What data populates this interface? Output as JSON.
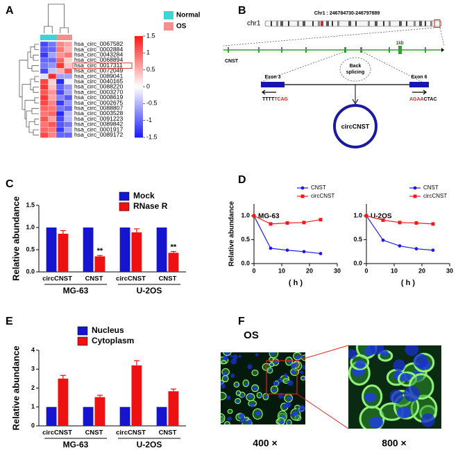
{
  "panel_labels": [
    "A",
    "B",
    "C",
    "D",
    "E",
    "F"
  ],
  "chart_data": [
    {
      "type": "heatmap",
      "rows": [
        "hsa_circ_0067582",
        "hsa_circ_0002884",
        "hsa_circ_0043284",
        "hsa_circ_0068894",
        "hsa_circ_0017311",
        "hsa_circ_0072049",
        "hsa_circ_0089041",
        "hsa_circ_0040165",
        "hsa_circ_0088220",
        "hsa_circ_0003270",
        "hsa_circ_0008619",
        "hsa_circ_0002675",
        "hsa_circ_0088807",
        "hsa_circ_0003528",
        "hsa_circ_0091223",
        "hsa_circ_0089842",
        "hsa_circ_0001917",
        "hsa_circ_0089172"
      ],
      "values": [
        [
          -1.2,
          -0.9,
          0.8,
          0.6
        ],
        [
          -1.1,
          -1.0,
          0.9,
          0.5
        ],
        [
          -1.3,
          -0.6,
          0.7,
          0.9
        ],
        [
          -1.0,
          -1.0,
          1.0,
          0.3
        ],
        [
          -0.9,
          -0.7,
          1.3,
          0.4
        ],
        [
          -1.2,
          -0.4,
          0.5,
          1.1
        ],
        [
          -0.2,
          1.4,
          -0.6,
          -0.6
        ],
        [
          1.2,
          0.3,
          -1.4,
          -0.1
        ],
        [
          1.3,
          0.4,
          -1.0,
          -0.7
        ],
        [
          1.1,
          0.7,
          -1.2,
          -0.6
        ],
        [
          1.3,
          0.6,
          -0.8,
          -1.1
        ],
        [
          1.2,
          0.8,
          -1.3,
          -0.7
        ],
        [
          1.0,
          0.9,
          -0.9,
          -1.0
        ],
        [
          0.9,
          1.0,
          -1.4,
          -0.5
        ],
        [
          1.1,
          0.6,
          -1.2,
          -0.5
        ],
        [
          0.9,
          1.1,
          -1.1,
          -0.9
        ],
        [
          1.0,
          0.9,
          -1.3,
          -0.6
        ],
        [
          1.2,
          0.8,
          -1.0,
          -1.0
        ]
      ],
      "clim": [
        -1.5,
        1.5
      ],
      "colorbar_ticks": [
        1.5,
        1,
        0.5,
        0,
        -0.5,
        -1,
        -1.5
      ],
      "colormap": [
        "#1a1aff",
        "#ffffff",
        "#ff1a1a"
      ],
      "column_colors": [
        "#40d4d4",
        "#40d4d4",
        "#f29090",
        "#f29090"
      ],
      "legend": [
        {
          "name": "Normal",
          "color": "#40d4d4"
        },
        {
          "name": "OS",
          "color": "#f29090"
        }
      ],
      "highlight_row": 4
    },
    {
      "type": "bar",
      "ylabel": "Relative abundance",
      "categories": [
        "circCNST",
        "CNST",
        "circCNST",
        "CNST"
      ],
      "group_labels": [
        "MG-63",
        "U-2OS"
      ],
      "series": [
        {
          "name": "Mock",
          "color": "#1515d0",
          "values": [
            1,
            1,
            1,
            1
          ],
          "errors": [
            0,
            0,
            0,
            0
          ]
        },
        {
          "name": "RNase R",
          "color": "#ee1111",
          "values": [
            0.86,
            0.35,
            0.89,
            0.43
          ],
          "errors": [
            0.07,
            0.02,
            0.08,
            0.03
          ]
        }
      ],
      "annotations": [
        {
          "text": "**",
          "category": 1
        },
        {
          "text": "**",
          "category": 3
        }
      ],
      "ylim": [
        0,
        1.5
      ],
      "yticks": [
        {
          "value": 0,
          "label": "0.0"
        },
        {
          "value": 0.5,
          "label": "0.5"
        },
        {
          "value": 1,
          "label": "1.0"
        },
        {
          "value": 1.5,
          "label": "1.5"
        }
      ]
    },
    {
      "type": "line",
      "title": "MG-63",
      "ylabel": "Relative abundance",
      "xlabel": "( h )",
      "x": [
        0,
        6,
        12,
        18,
        24
      ],
      "series": [
        {
          "name": "CNST",
          "color": "#1a1aee",
          "marker": "circle",
          "values": [
            1.0,
            0.32,
            0.28,
            0.25,
            0.21
          ]
        },
        {
          "name": "circCNST",
          "color": "#ee1a1a",
          "marker": "square",
          "values": [
            1.0,
            0.83,
            0.85,
            0.86,
            0.92
          ]
        }
      ],
      "xlim": [
        0,
        30
      ],
      "xticks": [
        0,
        10,
        20,
        30
      ],
      "ylim": [
        0,
        1.25
      ],
      "yticks": [
        {
          "value": 0,
          "label": "0.0"
        },
        {
          "value": 0.5,
          "label": "0.5"
        },
        {
          "value": 1,
          "label": "1.0"
        }
      ]
    },
    {
      "type": "line",
      "title": "U-2OS",
      "xlabel": "( h )",
      "x": [
        0,
        6,
        12,
        18,
        24
      ],
      "series": [
        {
          "name": "CNST",
          "color": "#1a1aee",
          "marker": "circle",
          "values": [
            1.0,
            0.49,
            0.37,
            0.31,
            0.28
          ]
        },
        {
          "name": "circCNST",
          "color": "#ee1a1a",
          "marker": "square",
          "values": [
            1.0,
            0.91,
            0.86,
            0.85,
            0.83
          ]
        }
      ],
      "xlim": [
        0,
        30
      ],
      "xticks": [
        0,
        10,
        20,
        30
      ],
      "ylim": [
        0,
        1.25
      ],
      "yticks": [
        {
          "value": 0,
          "label": "0.0"
        },
        {
          "value": 0.5,
          "label": "0.5"
        },
        {
          "value": 1,
          "label": "1.0"
        }
      ]
    },
    {
      "type": "bar",
      "ylabel": "Relative abundance",
      "categories": [
        "circCNST",
        "CNST",
        "circCNST",
        "CNST"
      ],
      "group_labels": [
        "MG-63",
        "U-2OS"
      ],
      "series": [
        {
          "name": "Nucleus",
          "color": "#1515d0",
          "values": [
            1,
            1,
            1,
            1
          ],
          "errors": [
            0,
            0,
            0,
            0
          ]
        },
        {
          "name": "Cytoplasm",
          "color": "#ee1111",
          "values": [
            2.5,
            1.52,
            3.2,
            1.83
          ],
          "errors": [
            0.17,
            0.1,
            0.25,
            0.12
          ]
        }
      ],
      "ylim": [
        0,
        4
      ],
      "yticks": [
        0,
        1,
        2,
        3,
        4
      ]
    }
  ],
  "diagram": {
    "chromosome": "chr1",
    "region": "Chr1 : 246784730-246797889",
    "gene": "CNST",
    "scale": "1kb",
    "event": [
      "Back",
      "splicing"
    ],
    "exon_left": "Exon 3",
    "exon_right": "Exon 6",
    "seq_left": [
      {
        "text": "TTTT",
        "color": "#000000"
      },
      {
        "text": "TCAG",
        "color": "#e02020"
      }
    ],
    "seq_right": [
      {
        "text": "AGAA",
        "color": "#e02020"
      },
      {
        "text": "CTAC",
        "color": "#000000"
      }
    ],
    "product": "circCNST"
  },
  "micrograph": {
    "label": "OS",
    "magnifications": [
      "400 ×",
      "800 ×"
    ]
  }
}
